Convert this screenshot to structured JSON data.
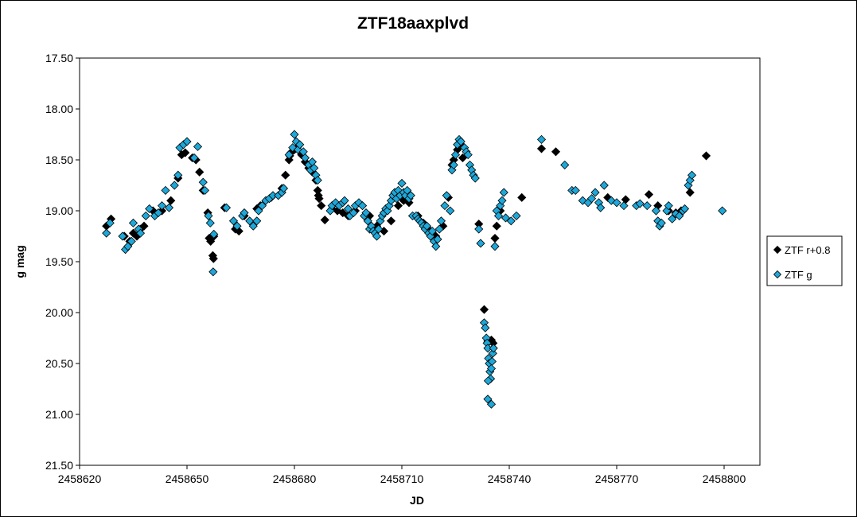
{
  "chart_data": {
    "type": "scatter",
    "title": "ZTF18aaxplvd",
    "xlabel": "JD",
    "ylabel": "g mag",
    "xlim": [
      2458620,
      2458810
    ],
    "ylim": [
      17.5,
      21.5
    ],
    "y_inverted": true,
    "grid": false,
    "legend": "right",
    "x_ticks": [
      "2458620",
      "2458650",
      "2458680",
      "2458710",
      "2458740",
      "2458770",
      "2458800"
    ],
    "y_ticks": [
      "17.50",
      "18.00",
      "18.50",
      "19.00",
      "19.50",
      "20.00",
      "20.50",
      "21.00",
      "21.50"
    ],
    "series": [
      {
        "name": "ZTF r+0.8",
        "color": "#000000",
        "marker": "diamond",
        "points": [
          [
            2458627.5,
            19.15
          ],
          [
            2458628.8,
            19.08
          ],
          [
            2458632.5,
            19.25
          ],
          [
            2458634.0,
            19.3
          ],
          [
            2458635.0,
            19.22
          ],
          [
            2458636.0,
            19.25
          ],
          [
            2458637.0,
            19.18
          ],
          [
            2458638.0,
            19.15
          ],
          [
            2458640.5,
            19.0
          ],
          [
            2458643.0,
            19.0
          ],
          [
            2458645.5,
            18.9
          ],
          [
            2458647.5,
            18.68
          ],
          [
            2458648.5,
            18.45
          ],
          [
            2458649.5,
            18.43
          ],
          [
            2458651.5,
            18.48
          ],
          [
            2458652.5,
            18.5
          ],
          [
            2458653.5,
            18.62
          ],
          [
            2458654.5,
            18.8
          ],
          [
            2458655.8,
            19.02
          ],
          [
            2458656.2,
            19.27
          ],
          [
            2458656.6,
            19.3
          ],
          [
            2458657.5,
            19.25
          ],
          [
            2458657.2,
            19.44
          ],
          [
            2458657.4,
            19.47
          ],
          [
            2458660.5,
            18.97
          ],
          [
            2458663.5,
            19.18
          ],
          [
            2458664.5,
            19.2
          ],
          [
            2458666.0,
            19.05
          ],
          [
            2458669.5,
            18.98
          ],
          [
            2458670.5,
            18.95
          ],
          [
            2458673.5,
            18.87
          ],
          [
            2458676.5,
            18.78
          ],
          [
            2458677.5,
            18.65
          ],
          [
            2458678.5,
            18.5
          ],
          [
            2458678.7,
            18.46
          ],
          [
            2458679.0,
            18.43
          ],
          [
            2458680.0,
            18.4
          ],
          [
            2458681.0,
            18.37
          ],
          [
            2458682.0,
            18.45
          ],
          [
            2458683.0,
            18.52
          ],
          [
            2458684.0,
            18.58
          ],
          [
            2458685.0,
            18.62
          ],
          [
            2458686.0,
            18.7
          ],
          [
            2458686.5,
            18.8
          ],
          [
            2458686.7,
            18.85
          ],
          [
            2458686.9,
            18.88
          ],
          [
            2458687.5,
            18.95
          ],
          [
            2458688.5,
            19.09
          ],
          [
            2458690.5,
            18.98
          ],
          [
            2458692.0,
            19.0
          ],
          [
            2458693.5,
            19.02
          ],
          [
            2458695.0,
            19.05
          ],
          [
            2458697.0,
            19.0
          ],
          [
            2458699.0,
            18.95
          ],
          [
            2458701.0,
            19.05
          ],
          [
            2458703.0,
            19.15
          ],
          [
            2458705.0,
            19.2
          ],
          [
            2458707.0,
            19.1
          ],
          [
            2458709.0,
            18.95
          ],
          [
            2458710.5,
            18.9
          ],
          [
            2458712.0,
            18.92
          ],
          [
            2458714.5,
            19.05
          ],
          [
            2458716.0,
            19.12
          ],
          [
            2458718.0,
            19.2
          ],
          [
            2458719.5,
            19.25
          ],
          [
            2458721.5,
            19.15
          ],
          [
            2458723.0,
            18.87
          ],
          [
            2458724.0,
            18.55
          ],
          [
            2458724.5,
            18.5
          ],
          [
            2458725.5,
            18.4
          ],
          [
            2458726.5,
            18.35
          ],
          [
            2458727.0,
            18.48
          ],
          [
            2458731.5,
            19.13
          ],
          [
            2458733.0,
            19.97
          ],
          [
            2458734.0,
            20.28
          ],
          [
            2458734.5,
            20.28
          ],
          [
            2458735.0,
            20.27
          ],
          [
            2458735.5,
            20.3
          ],
          [
            2458736.0,
            19.27
          ],
          [
            2458736.5,
            19.15
          ],
          [
            2458737.5,
            19.0
          ],
          [
            2458743.5,
            18.87
          ],
          [
            2458749.0,
            18.39
          ],
          [
            2458753.0,
            18.42
          ],
          [
            2458767.5,
            18.87
          ],
          [
            2458772.5,
            18.89
          ],
          [
            2458779.0,
            18.84
          ],
          [
            2458781.5,
            18.95
          ],
          [
            2458784.5,
            19.0
          ],
          [
            2458786.5,
            19.02
          ],
          [
            2458788.0,
            19.0
          ],
          [
            2458790.5,
            18.82
          ],
          [
            2458795.0,
            18.46
          ]
        ]
      },
      {
        "name": "ZTF g",
        "color": "#1EA8D9",
        "marker": "diamond",
        "points": [
          [
            2458627.5,
            19.22
          ],
          [
            2458628.5,
            19.12
          ],
          [
            2458632.0,
            19.25
          ],
          [
            2458632.8,
            19.38
          ],
          [
            2458633.5,
            19.35
          ],
          [
            2458634.5,
            19.3
          ],
          [
            2458635.0,
            19.12
          ],
          [
            2458636.5,
            19.18
          ],
          [
            2458637.0,
            19.22
          ],
          [
            2458638.5,
            19.05
          ],
          [
            2458639.5,
            18.98
          ],
          [
            2458641.0,
            19.05
          ],
          [
            2458642.0,
            19.02
          ],
          [
            2458643.0,
            18.95
          ],
          [
            2458644.0,
            18.8
          ],
          [
            2458645.0,
            18.97
          ],
          [
            2458646.5,
            18.75
          ],
          [
            2458647.5,
            18.65
          ],
          [
            2458648.0,
            18.38
          ],
          [
            2458649.0,
            18.35
          ],
          [
            2458650.0,
            18.32
          ],
          [
            2458652.0,
            18.48
          ],
          [
            2458653.0,
            18.37
          ],
          [
            2458654.5,
            18.72
          ],
          [
            2458655.0,
            18.8
          ],
          [
            2458656.0,
            19.05
          ],
          [
            2458656.5,
            19.12
          ],
          [
            2458657.5,
            19.23
          ],
          [
            2458657.3,
            19.6
          ],
          [
            2458661.0,
            18.97
          ],
          [
            2458663.0,
            19.1
          ],
          [
            2458664.0,
            19.15
          ],
          [
            2458665.5,
            19.05
          ],
          [
            2458666.0,
            19.02
          ],
          [
            2458667.5,
            19.1
          ],
          [
            2458668.5,
            19.15
          ],
          [
            2458669.5,
            19.1
          ],
          [
            2458670.0,
            19.0
          ],
          [
            2458671.0,
            18.95
          ],
          [
            2458672.0,
            18.9
          ],
          [
            2458673.0,
            18.88
          ],
          [
            2458674.0,
            18.85
          ],
          [
            2458675.5,
            18.85
          ],
          [
            2458676.5,
            18.82
          ],
          [
            2458677.0,
            18.78
          ],
          [
            2458678.5,
            18.45
          ],
          [
            2458679.5,
            18.38
          ],
          [
            2458680.0,
            18.25
          ],
          [
            2458680.5,
            18.32
          ],
          [
            2458681.0,
            18.4
          ],
          [
            2458681.5,
            18.35
          ],
          [
            2458682.5,
            18.42
          ],
          [
            2458683.0,
            18.48
          ],
          [
            2458684.0,
            18.55
          ],
          [
            2458684.5,
            18.6
          ],
          [
            2458685.0,
            18.52
          ],
          [
            2458685.5,
            18.58
          ],
          [
            2458686.0,
            18.65
          ],
          [
            2458686.5,
            18.7
          ],
          [
            2458690.0,
            19.0
          ],
          [
            2458690.5,
            18.95
          ],
          [
            2458691.5,
            18.92
          ],
          [
            2458692.5,
            18.95
          ],
          [
            2458693.5,
            18.92
          ],
          [
            2458694.0,
            18.9
          ],
          [
            2458695.0,
            18.98
          ],
          [
            2458695.5,
            19.05
          ],
          [
            2458696.5,
            19.02
          ],
          [
            2458697.0,
            18.95
          ],
          [
            2458698.0,
            18.92
          ],
          [
            2458699.0,
            18.95
          ],
          [
            2458699.5,
            19.05
          ],
          [
            2458700.0,
            19.02
          ],
          [
            2458700.5,
            19.1
          ],
          [
            2458701.0,
            19.18
          ],
          [
            2458701.5,
            19.15
          ],
          [
            2458702.0,
            19.2
          ],
          [
            2458702.5,
            19.22
          ],
          [
            2458703.0,
            19.25
          ],
          [
            2458703.5,
            19.18
          ],
          [
            2458704.0,
            19.1
          ],
          [
            2458704.5,
            19.05
          ],
          [
            2458705.0,
            19.02
          ],
          [
            2458705.5,
            18.98
          ],
          [
            2458706.0,
            19.0
          ],
          [
            2458706.5,
            18.95
          ],
          [
            2458707.0,
            18.9
          ],
          [
            2458707.5,
            18.85
          ],
          [
            2458708.0,
            18.82
          ],
          [
            2458708.5,
            18.88
          ],
          [
            2458709.0,
            18.8
          ],
          [
            2458709.5,
            18.85
          ],
          [
            2458710.0,
            18.73
          ],
          [
            2458710.5,
            18.82
          ],
          [
            2458711.0,
            18.85
          ],
          [
            2458711.5,
            18.8
          ],
          [
            2458712.0,
            18.88
          ],
          [
            2458712.5,
            18.85
          ],
          [
            2458713.0,
            19.05
          ],
          [
            2458714.0,
            19.05
          ],
          [
            2458714.5,
            19.08
          ],
          [
            2458715.0,
            19.1
          ],
          [
            2458715.5,
            19.12
          ],
          [
            2458716.0,
            19.15
          ],
          [
            2458716.5,
            19.18
          ],
          [
            2458717.0,
            19.15
          ],
          [
            2458717.5,
            19.22
          ],
          [
            2458718.0,
            19.25
          ],
          [
            2458718.5,
            19.2
          ],
          [
            2458719.0,
            19.3
          ],
          [
            2458719.5,
            19.35
          ],
          [
            2458720.0,
            19.28
          ],
          [
            2458720.5,
            19.18
          ],
          [
            2458721.0,
            19.1
          ],
          [
            2458722.0,
            18.95
          ],
          [
            2458722.5,
            18.85
          ],
          [
            2458723.5,
            19.0
          ],
          [
            2458724.0,
            18.6
          ],
          [
            2458724.5,
            18.55
          ],
          [
            2458725.0,
            18.45
          ],
          [
            2458725.5,
            18.35
          ],
          [
            2458726.0,
            18.3
          ],
          [
            2458726.5,
            18.32
          ],
          [
            2458727.5,
            18.38
          ],
          [
            2458728.0,
            18.42
          ],
          [
            2458728.5,
            18.45
          ],
          [
            2458729.0,
            18.55
          ],
          [
            2458729.5,
            18.6
          ],
          [
            2458730.0,
            18.65
          ],
          [
            2458730.5,
            18.68
          ],
          [
            2458731.5,
            19.18
          ],
          [
            2458732.0,
            19.32
          ],
          [
            2458733.0,
            20.1
          ],
          [
            2458733.3,
            20.15
          ],
          [
            2458733.6,
            20.25
          ],
          [
            2458733.8,
            20.3
          ],
          [
            2458734.0,
            20.35
          ],
          [
            2458734.2,
            20.45
          ],
          [
            2458734.4,
            20.5
          ],
          [
            2458734.6,
            20.58
          ],
          [
            2458734.8,
            20.65
          ],
          [
            2458734.1,
            20.67
          ],
          [
            2458735.0,
            20.55
          ],
          [
            2458735.2,
            20.48
          ],
          [
            2458735.4,
            20.4
          ],
          [
            2458735.6,
            20.35
          ],
          [
            2458734.0,
            20.85
          ],
          [
            2458735.0,
            20.9
          ],
          [
            2458736.0,
            19.35
          ],
          [
            2458736.5,
            19.0
          ],
          [
            2458737.0,
            19.05
          ],
          [
            2458737.5,
            18.95
          ],
          [
            2458738.0,
            18.9
          ],
          [
            2458738.5,
            18.82
          ],
          [
            2458739.0,
            19.07
          ],
          [
            2458740.5,
            19.1
          ],
          [
            2458742.0,
            19.05
          ],
          [
            2458749.0,
            18.3
          ],
          [
            2458755.5,
            18.55
          ],
          [
            2458757.5,
            18.8
          ],
          [
            2458758.5,
            18.8
          ],
          [
            2458760.5,
            18.9
          ],
          [
            2458762.0,
            18.92
          ],
          [
            2458763.0,
            18.88
          ],
          [
            2458764.0,
            18.82
          ],
          [
            2458765.0,
            18.92
          ],
          [
            2458765.5,
            18.97
          ],
          [
            2458766.5,
            18.75
          ],
          [
            2458768.5,
            18.9
          ],
          [
            2458770.0,
            18.92
          ],
          [
            2458772.0,
            18.95
          ],
          [
            2458775.5,
            18.95
          ],
          [
            2458776.5,
            18.93
          ],
          [
            2458778.5,
            18.95
          ],
          [
            2458781.0,
            19.0
          ],
          [
            2458781.5,
            19.1
          ],
          [
            2458782.0,
            19.15
          ],
          [
            2458782.5,
            19.12
          ],
          [
            2458784.0,
            19.0
          ],
          [
            2458784.5,
            18.95
          ],
          [
            2458785.5,
            19.08
          ],
          [
            2458786.5,
            19.03
          ],
          [
            2458787.5,
            19.05
          ],
          [
            2458788.5,
            19.0
          ],
          [
            2458789.0,
            18.98
          ],
          [
            2458790.0,
            18.75
          ],
          [
            2458790.5,
            18.7
          ],
          [
            2458791.0,
            18.65
          ],
          [
            2458799.5,
            19.0
          ]
        ]
      }
    ]
  }
}
